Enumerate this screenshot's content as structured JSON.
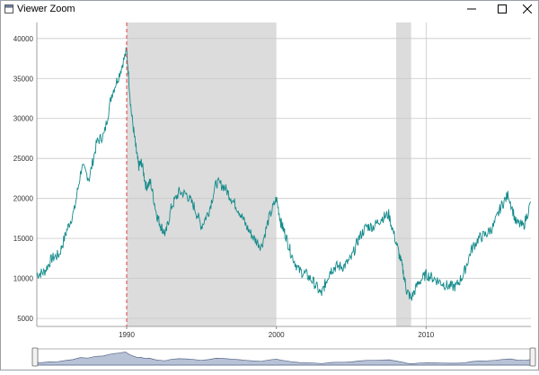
{
  "window": {
    "title": "Viewer Zoom",
    "icon": "app-window-icon",
    "controls": {
      "minimize": "minimize-icon",
      "maximize": "maximize-icon",
      "close": "close-icon"
    }
  },
  "chart_data": {
    "type": "line",
    "title": "",
    "xlabel": "",
    "ylabel": "",
    "xlim": [
      1984.0,
      2017.0
    ],
    "ylim": [
      4000,
      42000
    ],
    "x_ticks": [
      1990,
      2000,
      2010
    ],
    "y_ticks": [
      5000,
      10000,
      15000,
      20000,
      25000,
      30000,
      35000,
      40000
    ],
    "grid": {
      "horizontal": true,
      "vertical": false
    },
    "series": [
      {
        "color": "#138a8a",
        "x": [
          1984.0,
          1984.5,
          1985.0,
          1985.5,
          1986.0,
          1986.5,
          1987.0,
          1987.5,
          1988.0,
          1988.5,
          1989.0,
          1989.5,
          1990.0,
          1990.3,
          1990.6,
          1990.8,
          1991.0,
          1991.3,
          1991.6,
          1992.0,
          1992.3,
          1992.6,
          1993.0,
          1993.5,
          1994.0,
          1994.5,
          1995.0,
          1995.5,
          1996.0,
          1996.5,
          1997.0,
          1997.5,
          1998.0,
          1998.5,
          1999.0,
          1999.5,
          2000.0,
          2000.3,
          2000.6,
          2001.0,
          2001.5,
          2002.0,
          2002.5,
          2003.0,
          2003.3,
          2003.6,
          2004.0,
          2004.5,
          2005.0,
          2005.5,
          2006.0,
          2006.5,
          2007.0,
          2007.5,
          2008.0,
          2008.4,
          2008.7,
          2009.0,
          2009.5,
          2010.0,
          2010.5,
          2011.0,
          2011.5,
          2012.0,
          2012.5,
          2013.0,
          2013.5,
          2014.0,
          2014.5,
          2015.0,
          2015.5,
          2016.0,
          2016.5,
          2017.0
        ],
        "values": [
          10500,
          10800,
          12500,
          13000,
          16000,
          18500,
          24000,
          22500,
          27000,
          28000,
          33000,
          35500,
          38500,
          31000,
          26500,
          24000,
          24500,
          21500,
          22000,
          18000,
          16500,
          15500,
          19000,
          20800,
          20500,
          19000,
          16500,
          18500,
          22000,
          21500,
          20000,
          18500,
          16500,
          15000,
          14000,
          17500,
          20000,
          17000,
          15500,
          13000,
          11000,
          10500,
          9500,
          8000,
          9500,
          11000,
          11500,
          11500,
          12500,
          15000,
          16500,
          16500,
          17500,
          18000,
          14500,
          11500,
          8500,
          7500,
          9500,
          10500,
          10000,
          9500,
          9000,
          9000,
          10500,
          13500,
          15000,
          15500,
          16500,
          19000,
          20500,
          17000,
          16500,
          19500
        ]
      }
    ],
    "shaded_regions": [
      [
        1990.0,
        2000.0
      ],
      [
        2008.0,
        2009.0
      ]
    ],
    "marker_line": {
      "x": 1990.0,
      "style": "dashed",
      "color": "#e04040"
    },
    "navigator": {
      "range_start": 1984.0,
      "range_end": 2017.0
    }
  }
}
